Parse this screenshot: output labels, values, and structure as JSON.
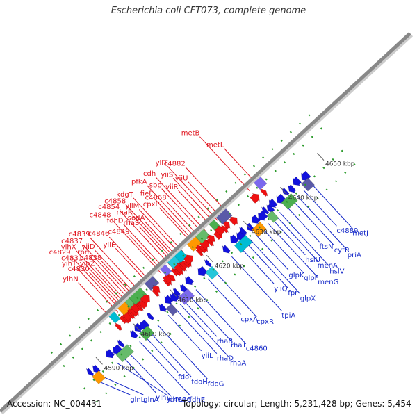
{
  "title": "Escherichia coli CFT073, complete genome",
  "footer": {
    "accession": "Accession: NC_004431",
    "summary": "Topology: circular; Length: 5,231,428 bp; Genes: 5,454"
  },
  "colors": {
    "forward_label": "#e0141e",
    "reverse_label": "#1428c8",
    "axis": "#888888",
    "forward_arrow": "#ee1111",
    "reverse_arrow": "#1111dd"
  },
  "ticks": [
    {
      "label": "4590 kbp",
      "pos": 4590
    },
    {
      "label": "4600 kbp",
      "pos": 4600
    },
    {
      "label": "4610 kbp",
      "pos": 4610
    },
    {
      "label": "4620 kbp",
      "pos": 4620
    },
    {
      "label": "4630 kbp",
      "pos": 4630
    },
    {
      "label": "4640 kbp",
      "pos": 4640
    },
    {
      "label": "4650 kbp",
      "pos": 4650
    }
  ],
  "forward_genes": [
    {
      "name": "yihN",
      "pos": 4597.5
    },
    {
      "name": "yihT",
      "pos": 4599.3
    },
    {
      "name": "c4829",
      "pos": 4600.0
    },
    {
      "name": "c4830",
      "pos": 4600.5
    },
    {
      "name": "c4831",
      "pos": 4601.0
    },
    {
      "name": "yihX",
      "pos": 4601.5
    },
    {
      "name": "yihZ",
      "pos": 4602.0
    },
    {
      "name": "rbn",
      "pos": 4602.7
    },
    {
      "name": "c4837",
      "pos": 4603.3
    },
    {
      "name": "c4838",
      "pos": 4603.8
    },
    {
      "name": "yiiD",
      "pos": 4604.3
    },
    {
      "name": "c4839",
      "pos": 4605.3
    },
    {
      "name": "yiiE",
      "pos": 4607.6
    },
    {
      "name": "c4846",
      "pos": 4608.2
    },
    {
      "name": "c4848",
      "pos": 4610.9
    },
    {
      "name": "c4849",
      "pos": 4611.4
    },
    {
      "name": "fdhD",
      "pos": 4612.0
    },
    {
      "name": "c4854",
      "pos": 4613.3
    },
    {
      "name": "rhaS",
      "pos": 4614.0
    },
    {
      "name": "rhaR",
      "pos": 4614.5
    },
    {
      "name": "c4858",
      "pos": 4615.0
    },
    {
      "name": "sodA",
      "pos": 4615.5
    },
    {
      "name": "yiiM",
      "pos": 4616.3
    },
    {
      "name": "kdgT",
      "pos": 4617.0
    },
    {
      "name": "cpxP",
      "pos": 4619.5
    },
    {
      "name": "fieF",
      "pos": 4620.0
    },
    {
      "name": "pfkA",
      "pos": 4620.7
    },
    {
      "name": "c4868",
      "pos": 4621.4
    },
    {
      "name": "sbp",
      "pos": 4622.4
    },
    {
      "name": "cdh",
      "pos": 4623.1
    },
    {
      "name": "yiiR",
      "pos": 4624.6
    },
    {
      "name": "yiiS",
      "pos": 4625.5
    },
    {
      "name": "yiiT",
      "pos": 4626.3
    },
    {
      "name": "yiiU",
      "pos": 4627.2
    },
    {
      "name": "c4882",
      "pos": 4628.8
    },
    {
      "name": "metB",
      "pos": 4635.0
    },
    {
      "name": "metL",
      "pos": 4637.0
    }
  ],
  "reverse_genes": [
    {
      "name": "glnL",
      "pos": 4587.0
    },
    {
      "name": "glnA",
      "pos": 4588.3
    },
    {
      "name": "yihW",
      "pos": 4592.3
    },
    {
      "name": "yihV",
      "pos": 4594.0
    },
    {
      "name": "c4836",
      "pos": 4595.4
    },
    {
      "name": "fdhE",
      "pos": 4598.5
    },
    {
      "name": "fdoI",
      "pos": 4600.0
    },
    {
      "name": "fdoH",
      "pos": 4601.3
    },
    {
      "name": "fdoG",
      "pos": 4603.4
    },
    {
      "name": "yiiL",
      "pos": 4606.3
    },
    {
      "name": "rhaD",
      "pos": 4608.2
    },
    {
      "name": "rhaA",
      "pos": 4609.5
    },
    {
      "name": "rhaB",
      "pos": 4610.5
    },
    {
      "name": "rhaT",
      "pos": 4612.0
    },
    {
      "name": "c4860",
      "pos": 4613.8
    },
    {
      "name": "cpxA",
      "pos": 4617.0
    },
    {
      "name": "cpxR",
      "pos": 4619.0
    },
    {
      "name": "tpiA",
      "pos": 4623.5
    },
    {
      "name": "yiiQ",
      "pos": 4626.0
    },
    {
      "name": "fpr",
      "pos": 4627.5
    },
    {
      "name": "glpX",
      "pos": 4628.5
    },
    {
      "name": "glpK",
      "pos": 4630.0
    },
    {
      "name": "glpF",
      "pos": 4631.8
    },
    {
      "name": "menG",
      "pos": 4633.3
    },
    {
      "name": "hslU",
      "pos": 4634.5
    },
    {
      "name": "menA",
      "pos": 4635.5
    },
    {
      "name": "hslV",
      "pos": 4636.5
    },
    {
      "name": "ftsN",
      "pos": 4638.3
    },
    {
      "name": "cytR",
      "pos": 4640.0
    },
    {
      "name": "priA",
      "pos": 4641.3
    },
    {
      "name": "c4889",
      "pos": 4643.0
    },
    {
      "name": "metJ",
      "pos": 4645.0
    }
  ]
}
